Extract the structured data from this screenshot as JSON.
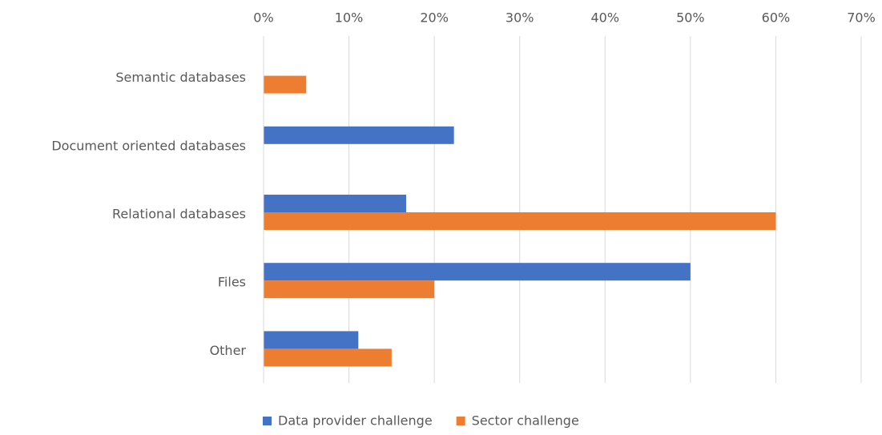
{
  "chart_data": {
    "type": "hbar",
    "categories": [
      "Semantic databases",
      "Document oriented databases",
      "Relational databases",
      "Files",
      "Other"
    ],
    "series": [
      {
        "name": "Data provider challenge",
        "color": "#4472c4",
        "values": [
          0,
          22.3,
          16.7,
          50,
          11.1
        ]
      },
      {
        "name": "Sector challenge",
        "color": "#ed7d31",
        "values": [
          5,
          0,
          60,
          20,
          15
        ]
      }
    ],
    "xlim": [
      0,
      70
    ],
    "xticks": [
      {
        "value": 0,
        "label": "0%"
      },
      {
        "value": 10,
        "label": "10%"
      },
      {
        "value": 20,
        "label": "20%"
      },
      {
        "value": 30,
        "label": "30%"
      },
      {
        "value": 40,
        "label": "40%"
      },
      {
        "value": 50,
        "label": "50%"
      },
      {
        "value": 60,
        "label": "60%"
      },
      {
        "value": 70,
        "label": "70%"
      }
    ],
    "grid": true,
    "legend": "bottom"
  }
}
